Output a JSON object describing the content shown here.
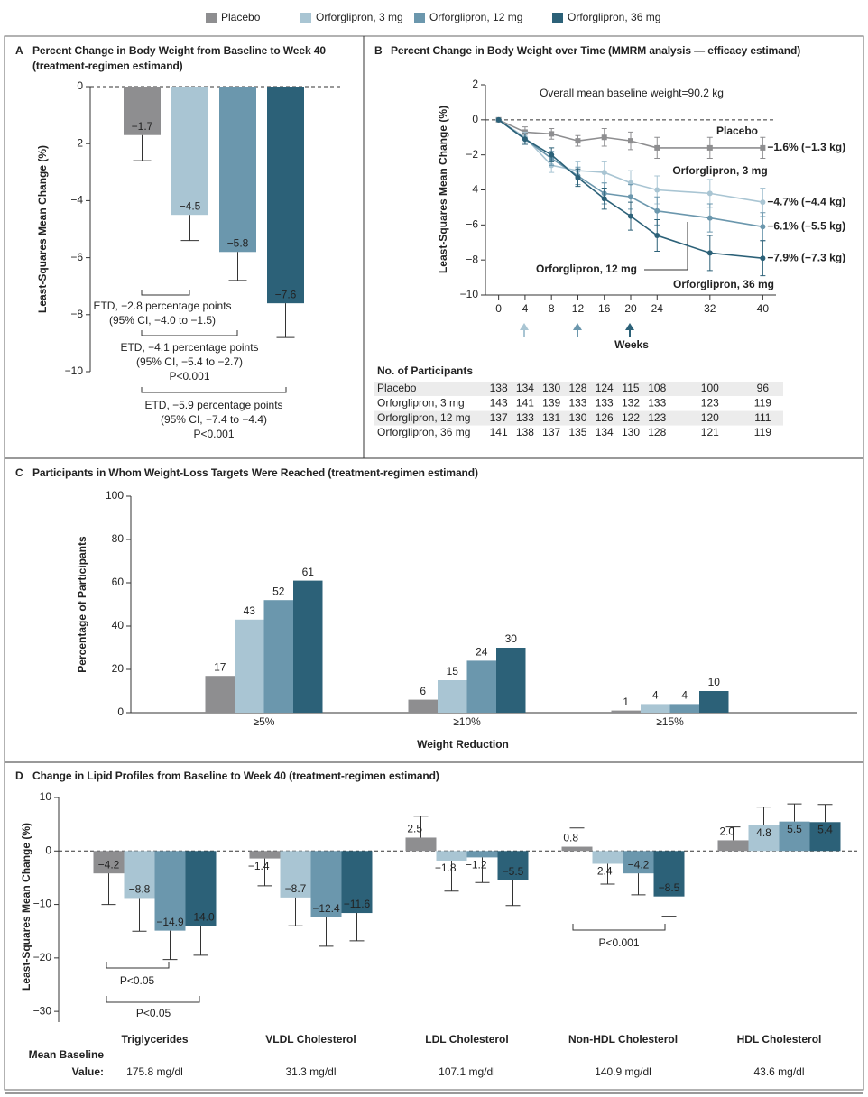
{
  "legend": [
    {
      "name": "Placebo",
      "color": "#8e8e90"
    },
    {
      "name": "Orforglipron, 3 mg",
      "color": "#a9c5d3"
    },
    {
      "name": "Orforglipron, 12 mg",
      "color": "#6b97ad"
    },
    {
      "name": "Orforglipron, 36 mg",
      "color": "#2c6178"
    }
  ],
  "chart_data": [
    {
      "type": "bar",
      "label": "A",
      "title": "Percent Change in Body Weight from Baseline to Week 40 (treatment-regimen estimand)",
      "ylabel": "Least-Squares Mean Change (%)",
      "ylim": [
        -10,
        0
      ],
      "yticks": [
        {
          "value": -10,
          "label": "−10"
        },
        {
          "value": -8,
          "label": "−8"
        },
        {
          "value": -6,
          "label": "−6"
        },
        {
          "value": -4,
          "label": "−4"
        },
        {
          "value": -2,
          "label": "−2"
        },
        0
      ],
      "series": [
        {
          "color": "#8e8e90",
          "values": [
            -1.7
          ],
          "value_labels": [
            "−1.7"
          ],
          "ci_bound": [
            -2.6
          ]
        },
        {
          "color": "#a9c5d3",
          "values": [
            -4.5
          ],
          "value_labels": [
            "−4.5"
          ],
          "ci_bound": [
            -5.4
          ]
        },
        {
          "color": "#6b97ad",
          "values": [
            -5.8
          ],
          "value_labels": [
            "−5.8"
          ],
          "ci_bound": [
            -6.8
          ]
        },
        {
          "color": "#2c6178",
          "values": [
            -7.6
          ],
          "value_labels": [
            "−7.6"
          ],
          "ci_bound": [
            -8.8
          ]
        }
      ],
      "annotations": [
        [
          "ETD, −2.8 percentage points",
          "(95% CI, −4.0 to −1.5)"
        ],
        [
          "ETD, −4.1 percentage points",
          "(95% CI, −5.4 to −2.7)",
          "P<0.001"
        ],
        [
          "ETD, −5.9 percentage points",
          "(95% CI, −7.4 to −4.4)",
          "P<0.001"
        ]
      ]
    },
    {
      "type": "line",
      "label": "B",
      "title": "Percent Change in Body Weight over Time (MMRM analysis — efficacy estimand)",
      "subtitle": "Overall mean baseline weight=90.2 kg",
      "xlabel": "Weeks",
      "ylabel": "Least-Squares Mean Change (%)",
      "x": [
        0,
        4,
        8,
        12,
        16,
        20,
        24,
        32,
        40
      ],
      "xlim": [
        -2,
        42
      ],
      "xticks": [
        0,
        4,
        8,
        12,
        16,
        20,
        24,
        32,
        40
      ],
      "ylim": [
        -10,
        2
      ],
      "yticks": [
        {
          "value": -10,
          "label": "−10"
        },
        {
          "value": -8,
          "label": "−8"
        },
        {
          "value": -6,
          "label": "−6"
        },
        {
          "value": -4,
          "label": "−4"
        },
        {
          "value": -2,
          "label": "−2"
        },
        0,
        2
      ],
      "series": [
        {
          "name": "Placebo",
          "color": "#8e8e90",
          "marker": "square",
          "values": [
            0,
            -0.7,
            -0.8,
            -1.2,
            -1.0,
            -1.2,
            -1.6,
            -1.6,
            -1.6
          ],
          "errors": [
            0,
            0.3,
            0.3,
            0.3,
            0.5,
            0.5,
            0.6,
            0.6,
            0.6
          ],
          "end_label": "−1.6% (−1.3 kg)"
        },
        {
          "name": "Orforglipron, 3 mg",
          "color": "#a9c5d3",
          "marker": "circle",
          "values": [
            0,
            -1.0,
            -2.6,
            -2.9,
            -3.0,
            -3.6,
            -4.0,
            -4.2,
            -4.7
          ],
          "errors": [
            0,
            0.3,
            0.4,
            0.5,
            0.6,
            0.7,
            0.8,
            0.8,
            0.8
          ],
          "end_label": "−4.7% (−4.4 kg)"
        },
        {
          "name": "Orforglipron, 12 mg",
          "color": "#6b97ad",
          "marker": "circle",
          "values": [
            0,
            -1.1,
            -2.2,
            -3.2,
            -4.2,
            -4.4,
            -5.2,
            -5.6,
            -6.1
          ],
          "errors": [
            0,
            0.3,
            0.4,
            0.5,
            0.6,
            0.7,
            0.8,
            0.8,
            0.8
          ],
          "end_label": "−6.1% (−5.5 kg)"
        },
        {
          "name": "Orforglipron, 36 mg",
          "color": "#2c6178",
          "marker": "circle",
          "values": [
            0,
            -1.1,
            -2.0,
            -3.3,
            -4.5,
            -5.5,
            -6.6,
            -7.6,
            -7.9
          ],
          "errors": [
            0,
            0.3,
            0.4,
            0.5,
            0.6,
            0.8,
            0.9,
            1.0,
            1.0
          ],
          "end_label": "−7.9% (−7.3 kg)"
        }
      ],
      "participants": {
        "title": "No. of Participants",
        "rows": [
          {
            "label": "Placebo",
            "values": [
              138,
              134,
              130,
              128,
              124,
              115,
              108,
              100,
              96
            ]
          },
          {
            "label": "Orforglipron, 3 mg",
            "values": [
              143,
              141,
              139,
              133,
              133,
              132,
              133,
              123,
              119
            ]
          },
          {
            "label": "Orforglipron, 12 mg",
            "values": [
              137,
              133,
              131,
              130,
              126,
              122,
              123,
              120,
              111
            ]
          },
          {
            "label": "Orforglipron, 36 mg",
            "values": [
              141,
              138,
              137,
              135,
              134,
              130,
              128,
              121,
              119
            ]
          }
        ]
      }
    },
    {
      "type": "bar",
      "label": "C",
      "title": "Participants in Whom Weight-Loss Targets Were Reached (treatment-regimen estimand)",
      "xlabel": "Weight Reduction",
      "ylabel": "Percentage of Participants",
      "categories": [
        "≥5%",
        "≥10%",
        "≥15%"
      ],
      "ylim": [
        0,
        100
      ],
      "yticks": [
        0,
        20,
        40,
        60,
        80,
        100
      ],
      "series": [
        {
          "color": "#8e8e90",
          "values": [
            17,
            6,
            1
          ]
        },
        {
          "color": "#a9c5d3",
          "values": [
            43,
            15,
            4
          ]
        },
        {
          "color": "#6b97ad",
          "values": [
            52,
            24,
            4
          ]
        },
        {
          "color": "#2c6178",
          "values": [
            61,
            30,
            10
          ]
        }
      ]
    },
    {
      "type": "bar",
      "label": "D",
      "title": "Change in Lipid Profiles from Baseline to Week 40 (treatment-regimen estimand)",
      "ylabel": "Least-Squares Mean Change (%)",
      "categories": [
        "Triglycerides",
        "VLDL Cholesterol",
        "LDL Cholesterol",
        "Non-HDL Cholesterol",
        "HDL Cholesterol"
      ],
      "ylim": [
        -32,
        10
      ],
      "yticks": [
        {
          "value": -30,
          "label": "−30"
        },
        {
          "value": -20,
          "label": "−20"
        },
        {
          "value": -10,
          "label": "−10"
        },
        0,
        10
      ],
      "series": [
        {
          "color": "#8e8e90",
          "values": [
            -4.2,
            -1.4,
            2.5,
            0.8,
            2.0
          ],
          "value_labels": [
            "−4.2",
            "−1.4",
            "2.5",
            "0.8",
            "2.0"
          ],
          "ci_bound": [
            -10,
            -6.5,
            6.5,
            4.3,
            4.5
          ]
        },
        {
          "color": "#a9c5d3",
          "values": [
            -8.8,
            -8.7,
            -1.8,
            -2.4,
            4.8
          ],
          "value_labels": [
            "−8.8",
            "−8.7",
            "−1.8",
            "−2.4",
            "4.8"
          ],
          "ci_bound": [
            -15,
            -14,
            -7.5,
            -6.2,
            8.2
          ]
        },
        {
          "color": "#6b97ad",
          "values": [
            -14.9,
            -12.4,
            -1.2,
            -4.2,
            5.5
          ],
          "value_labels": [
            "−14.9",
            "−12.4",
            "−1.2",
            "−4.2",
            "5.5"
          ],
          "ci_bound": [
            -20.3,
            -17.8,
            -5.9,
            -8.2,
            8.8
          ]
        },
        {
          "color": "#2c6178",
          "values": [
            -14.0,
            -11.6,
            -5.5,
            -8.5,
            5.4
          ],
          "value_labels": [
            "−14.0",
            "−11.6",
            "−5.5",
            "−8.5",
            "5.4"
          ],
          "ci_bound": [
            -19.5,
            -16.8,
            -10.2,
            -12.2,
            8.7
          ]
        }
      ],
      "annotations": [
        [
          "P<0.05"
        ],
        [
          "P<0.05"
        ],
        [
          "P<0.001"
        ]
      ],
      "baseline_label": [
        "Mean Baseline",
        "Value:"
      ],
      "baseline_values": [
        "175.8 mg/dl",
        "31.3 mg/dl",
        "107.1 mg/dl",
        "140.9 mg/dl",
        "43.6 mg/dl"
      ]
    }
  ]
}
